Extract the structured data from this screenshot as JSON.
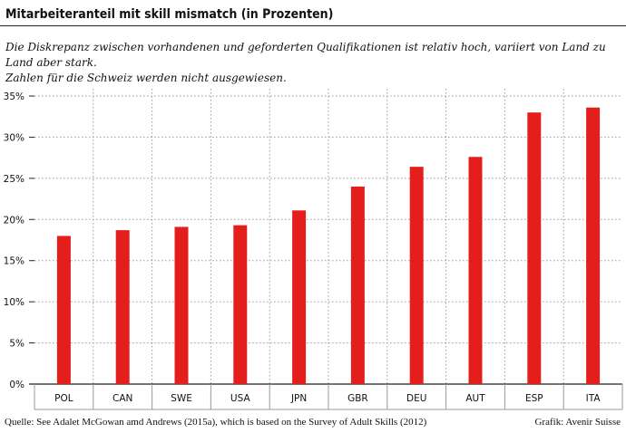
{
  "chart_data": {
    "type": "bar",
    "title": "Mitarbeiteranteil mit skill mismatch (in Prozenten)",
    "subtitle_lines": [
      "Die Diskrepanz zwischen vorhandenen und geforderten Qualifikationen ist relativ hoch, variiert von Land zu Land aber stark.",
      "Zahlen für die Schweiz werden nicht ausgewiesen."
    ],
    "categories": [
      "POL",
      "CAN",
      "SWE",
      "USA",
      "JPN",
      "GBR",
      "DEU",
      "AUT",
      "ESP",
      "ITA"
    ],
    "values": [
      18.0,
      18.7,
      19.1,
      19.3,
      21.1,
      24.0,
      26.4,
      27.6,
      33.0,
      33.6
    ],
    "ylim": [
      0,
      35
    ],
    "yticks": [
      0,
      5,
      10,
      15,
      20,
      25,
      30,
      35
    ],
    "ytick_labels": [
      "0%",
      "5%",
      "10%",
      "15%",
      "20%",
      "25%",
      "30%",
      "35%"
    ],
    "bar_color": "#e41e1b",
    "grid": "dotted",
    "legend": "none"
  },
  "footer": {
    "source": "Quelle: See Adalet McGowan amd Andrews (2015a), which is based on the Survey of Adult Skills (2012)",
    "credit": "Grafik: Avenir Suisse"
  }
}
